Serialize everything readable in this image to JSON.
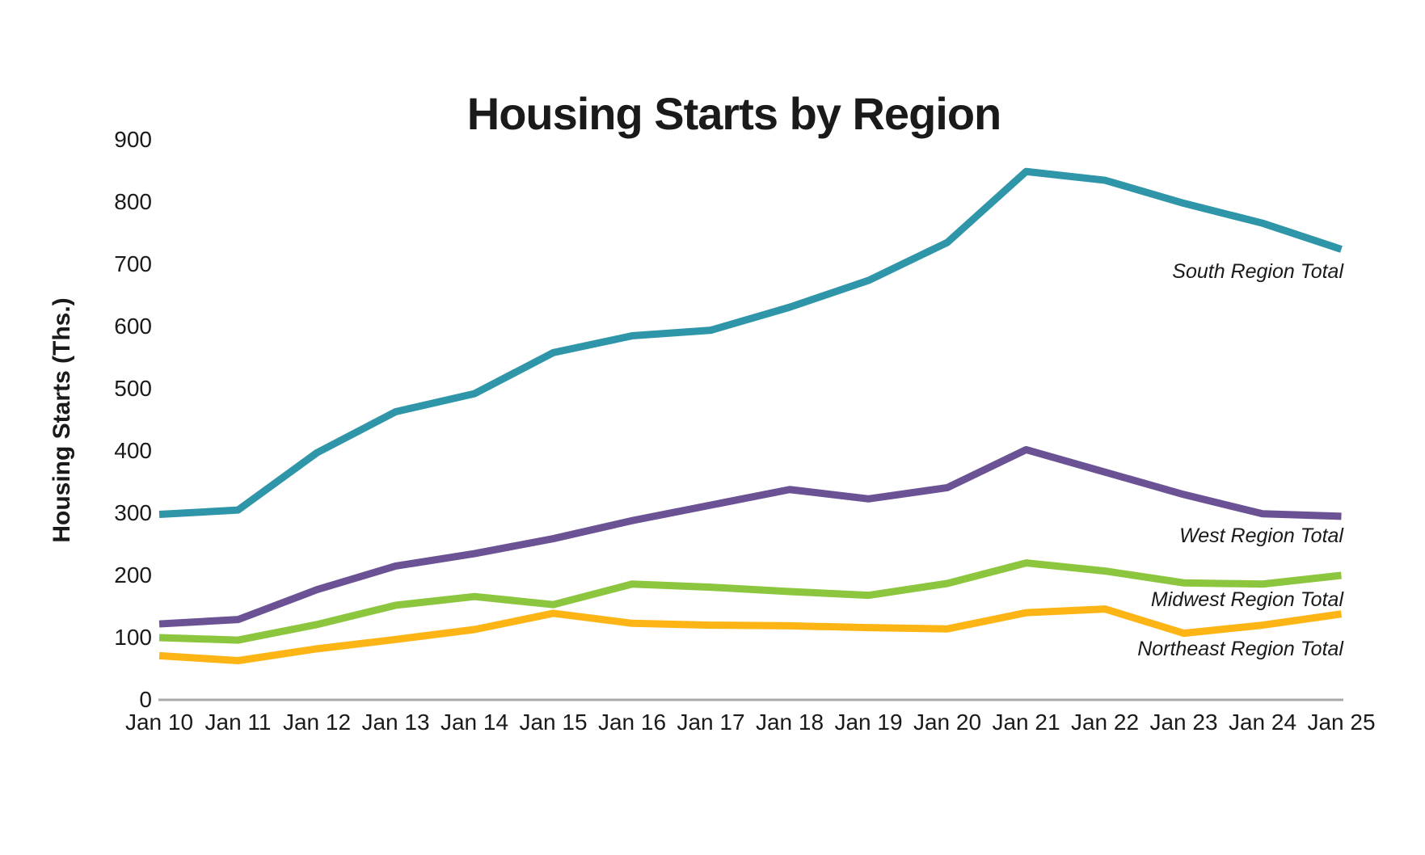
{
  "page": {
    "background": "#FFFFFF"
  },
  "chart_data": {
    "type": "line",
    "title": "Housing Starts by Region",
    "ylabel": "Housing Starts (Ths.)",
    "xlabel": "",
    "categories": [
      "Jan 10",
      "Jan 11",
      "Jan 12",
      "Jan 13",
      "Jan 14",
      "Jan 15",
      "Jan 16",
      "Jan 17",
      "Jan 18",
      "Jan 19",
      "Jan 20",
      "Jan 21",
      "Jan 22",
      "Jan 23",
      "Jan 24",
      "Jan 25"
    ],
    "ylim": [
      0,
      900
    ],
    "y_tick_step": 100,
    "grid": false,
    "legend_position": "inline-right-end-of-line",
    "axis_color": "#A9A9A9",
    "text_color": "#1A1A1A",
    "line_width": 9,
    "series": [
      {
        "name": "South Region Total",
        "color": "#2E96A8",
        "values": [
          298,
          305,
          397,
          463,
          492,
          558,
          585,
          594,
          631,
          674,
          735,
          849,
          835,
          798,
          766,
          724
        ]
      },
      {
        "name": "West Region Total",
        "color": "#6B5294",
        "values": [
          122,
          129,
          177,
          215,
          235,
          259,
          288,
          313,
          338,
          323,
          341,
          402,
          366,
          330,
          299,
          295
        ]
      },
      {
        "name": "Midwest Region Total",
        "color": "#8CC63E",
        "values": [
          100,
          96,
          121,
          152,
          166,
          153,
          186,
          181,
          174,
          168,
          187,
          220,
          207,
          188,
          186,
          200
        ]
      },
      {
        "name": "Northeast Region Total",
        "color": "#FCB515",
        "values": [
          71,
          63,
          82,
          97,
          113,
          139,
          123,
          120,
          119,
          116,
          114,
          140,
          146,
          107,
          120,
          138
        ]
      }
    ]
  }
}
